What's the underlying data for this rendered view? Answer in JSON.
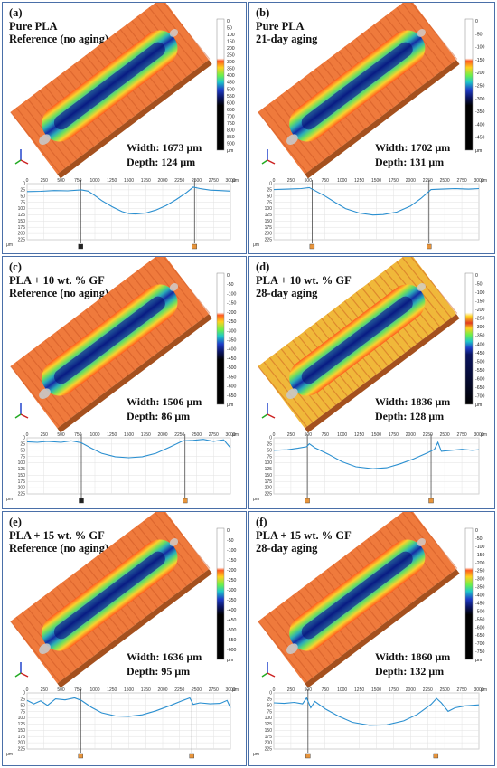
{
  "colors": {
    "panel_border": "#4a6fa8",
    "profile_line": "#2a8fd0",
    "marker_left_a": "#222222",
    "marker_orange": "#e8953c"
  },
  "panels": [
    {
      "id": "a",
      "title": "(a)",
      "line1": "Pure PLA",
      "line2": "Reference (no aging)",
      "width": "Width: 1673 μm",
      "depth": "Depth: 124 μm",
      "colorbar_ticks": [
        "0",
        "50",
        "100",
        "150",
        "200",
        "250",
        "300",
        "350",
        "400",
        "450",
        "500",
        "550",
        "600",
        "650",
        "700",
        "750",
        "800",
        "850",
        "900",
        "μm"
      ],
      "surface": "orange",
      "marker_left": "dark",
      "chart_data": {
        "type": "line",
        "x_ticks": [
          "0",
          "250",
          "500",
          "750",
          "1000",
          "1250",
          "1500",
          "1750",
          "2000",
          "2250",
          "2500",
          "2750",
          "3000"
        ],
        "x_unit": "μm",
        "y_ticks": [
          "0",
          "25",
          "50",
          "75",
          "100",
          "125",
          "150",
          "175",
          "200",
          "225"
        ],
        "y_unit": "μm",
        "xlim": [
          0,
          3000
        ],
        "ylim": [
          0,
          225
        ],
        "inverted_y": true,
        "profile": [
          [
            0,
            32
          ],
          [
            200,
            31
          ],
          [
            400,
            28
          ],
          [
            600,
            29
          ],
          [
            800,
            25
          ],
          [
            900,
            30
          ],
          [
            1000,
            48
          ],
          [
            1100,
            68
          ],
          [
            1250,
            92
          ],
          [
            1400,
            112
          ],
          [
            1500,
            120
          ],
          [
            1600,
            122
          ],
          [
            1750,
            118
          ],
          [
            1900,
            106
          ],
          [
            2050,
            88
          ],
          [
            2200,
            64
          ],
          [
            2350,
            36
          ],
          [
            2450,
            14
          ],
          [
            2550,
            20
          ],
          [
            2700,
            26
          ],
          [
            2850,
            28
          ],
          [
            3000,
            30
          ]
        ],
        "markers_x": [
          790,
          2470
        ]
      }
    },
    {
      "id": "b",
      "title": "(b)",
      "line1": "Pure PLA",
      "line2": "21-day aging",
      "width": "Width: 1702 μm",
      "depth": "Depth: 131 μm",
      "colorbar_ticks": [
        "0",
        "-50",
        "-100",
        "-150",
        "-200",
        "-250",
        "-300",
        "-350",
        "-400",
        "-450",
        "μm"
      ],
      "surface": "orange",
      "marker_left": "orange",
      "chart_data": {
        "type": "line",
        "x_ticks": [
          "0",
          "250",
          "500",
          "750",
          "1000",
          "1250",
          "1500",
          "1750",
          "2000",
          "2250",
          "2500",
          "2750",
          "3000"
        ],
        "x_unit": "μm",
        "y_ticks": [
          "0",
          "25",
          "50",
          "75",
          "100",
          "125",
          "150",
          "175",
          "200",
          "225"
        ],
        "y_unit": "μm",
        "xlim": [
          0,
          3000
        ],
        "ylim": [
          0,
          225
        ],
        "inverted_y": true,
        "profile": [
          [
            0,
            24
          ],
          [
            200,
            22
          ],
          [
            400,
            20
          ],
          [
            520,
            16
          ],
          [
            600,
            28
          ],
          [
            750,
            50
          ],
          [
            900,
            76
          ],
          [
            1050,
            100
          ],
          [
            1250,
            118
          ],
          [
            1450,
            126
          ],
          [
            1600,
            124
          ],
          [
            1800,
            114
          ],
          [
            2000,
            90
          ],
          [
            2150,
            60
          ],
          [
            2300,
            24
          ],
          [
            2450,
            22
          ],
          [
            2650,
            20
          ],
          [
            2850,
            22
          ],
          [
            3000,
            20
          ]
        ],
        "markers_x": [
          560,
          2270
        ]
      }
    },
    {
      "id": "c",
      "title": "(c)",
      "line1": "PLA + 10 wt. % GF",
      "line2": "Reference (no aging)",
      "width": "Width: 1506 μm",
      "depth": "Depth: 86 μm",
      "colorbar_ticks": [
        "0",
        "-50",
        "-100",
        "-150",
        "-200",
        "-250",
        "-300",
        "-350",
        "-400",
        "-450",
        "-500",
        "-550",
        "-600",
        "-650",
        "μm"
      ],
      "surface": "orange",
      "marker_left": "dark",
      "chart_data": {
        "type": "line",
        "x_ticks": [
          "0",
          "250",
          "500",
          "750",
          "1000",
          "1250",
          "1500",
          "1750",
          "2000",
          "2250",
          "2500",
          "2750",
          "3000"
        ],
        "x_unit": "μm",
        "y_ticks": [
          "0",
          "25",
          "50",
          "75",
          "100",
          "125",
          "150",
          "175",
          "200",
          "225"
        ],
        "y_unit": "μm",
        "xlim": [
          0,
          3000
        ],
        "ylim": [
          0,
          225
        ],
        "inverted_y": true,
        "profile": [
          [
            0,
            16
          ],
          [
            150,
            18
          ],
          [
            300,
            14
          ],
          [
            500,
            18
          ],
          [
            650,
            12
          ],
          [
            800,
            20
          ],
          [
            950,
            42
          ],
          [
            1100,
            62
          ],
          [
            1300,
            76
          ],
          [
            1500,
            80
          ],
          [
            1700,
            76
          ],
          [
            1900,
            62
          ],
          [
            2100,
            38
          ],
          [
            2300,
            12
          ],
          [
            2450,
            10
          ],
          [
            2600,
            6
          ],
          [
            2750,
            14
          ],
          [
            2900,
            8
          ],
          [
            3000,
            40
          ]
        ],
        "markers_x": [
          800,
          2330
        ]
      }
    },
    {
      "id": "d",
      "title": "(d)",
      "line1": "PLA + 10 wt. % GF",
      "line2": "28-day aging",
      "width": "Width: 1836 μm",
      "depth": "Depth: 128 μm",
      "colorbar_ticks": [
        "0",
        "-50",
        "-100",
        "-150",
        "-200",
        "-250",
        "-300",
        "-350",
        "-400",
        "-450",
        "-500",
        "-550",
        "-600",
        "-650",
        "-700",
        "μm"
      ],
      "surface": "yellow",
      "marker_left": "orange",
      "chart_data": {
        "type": "line",
        "x_ticks": [
          "0",
          "250",
          "500",
          "750",
          "1000",
          "1250",
          "1500",
          "1750",
          "2000",
          "2250",
          "2500",
          "2750",
          "3000"
        ],
        "x_unit": "μm",
        "y_ticks": [
          "0",
          "25",
          "50",
          "75",
          "100",
          "125",
          "150",
          "175",
          "200",
          "225"
        ],
        "y_unit": "μm",
        "xlim": [
          0,
          3000
        ],
        "ylim": [
          0,
          225
        ],
        "inverted_y": true,
        "profile": [
          [
            0,
            50
          ],
          [
            200,
            48
          ],
          [
            350,
            42
          ],
          [
            480,
            36
          ],
          [
            520,
            24
          ],
          [
            600,
            40
          ],
          [
            800,
            66
          ],
          [
            1000,
            96
          ],
          [
            1200,
            116
          ],
          [
            1450,
            124
          ],
          [
            1650,
            120
          ],
          [
            1850,
            104
          ],
          [
            2050,
            84
          ],
          [
            2250,
            60
          ],
          [
            2350,
            46
          ],
          [
            2400,
            18
          ],
          [
            2450,
            54
          ],
          [
            2600,
            50
          ],
          [
            2750,
            46
          ],
          [
            2900,
            50
          ],
          [
            3000,
            48
          ]
        ],
        "markers_x": [
          490,
          2300
        ]
      }
    },
    {
      "id": "e",
      "title": "(e)",
      "line1": "PLA + 15 wt. % GF",
      "line2": "Reference (no aging)",
      "width": "Width: 1636 μm",
      "depth": "Depth: 95 μm",
      "colorbar_ticks": [
        "0",
        "-50",
        "-100",
        "-150",
        "-200",
        "-250",
        "-300",
        "-350",
        "-400",
        "-450",
        "-500",
        "-550",
        "-600",
        "μm"
      ],
      "surface": "orange",
      "marker_left": "orange",
      "chart_data": {
        "type": "line",
        "x_ticks": [
          "0",
          "250",
          "500",
          "750",
          "1000",
          "1250",
          "1500",
          "1750",
          "2000",
          "2250",
          "2500",
          "2750",
          "3000"
        ],
        "x_unit": "μm",
        "y_ticks": [
          "0",
          "25",
          "50",
          "75",
          "100",
          "125",
          "150",
          "175",
          "200",
          "225"
        ],
        "y_unit": "μm",
        "xlim": [
          0,
          3000
        ],
        "ylim": [
          0,
          225
        ],
        "inverted_y": true,
        "profile": [
          [
            0,
            30
          ],
          [
            100,
            44
          ],
          [
            200,
            32
          ],
          [
            300,
            50
          ],
          [
            420,
            24
          ],
          [
            560,
            28
          ],
          [
            700,
            20
          ],
          [
            800,
            30
          ],
          [
            950,
            58
          ],
          [
            1100,
            80
          ],
          [
            1300,
            92
          ],
          [
            1500,
            94
          ],
          [
            1700,
            88
          ],
          [
            1900,
            72
          ],
          [
            2100,
            52
          ],
          [
            2300,
            30
          ],
          [
            2400,
            20
          ],
          [
            2450,
            46
          ],
          [
            2550,
            40
          ],
          [
            2700,
            44
          ],
          [
            2850,
            42
          ],
          [
            2950,
            30
          ],
          [
            3000,
            60
          ]
        ],
        "markers_x": [
          790,
          2430
        ]
      }
    },
    {
      "id": "f",
      "title": "(f)",
      "line1": "PLA + 15 wt. % GF",
      "line2": "28-day aging",
      "width": "Width: 1860 μm",
      "depth": "Depth: 132 μm",
      "colorbar_ticks": [
        "0",
        "-50",
        "-100",
        "-150",
        "-200",
        "-250",
        "-300",
        "-350",
        "-400",
        "-450",
        "-500",
        "-550",
        "-600",
        "-650",
        "-700",
        "-750",
        "μm"
      ],
      "surface": "orange",
      "marker_left": "orange",
      "chart_data": {
        "type": "line",
        "x_ticks": [
          "0",
          "250",
          "500",
          "750",
          "1000",
          "1250",
          "1500",
          "1750",
          "2000",
          "2250",
          "2500",
          "2750",
          "3000"
        ],
        "x_unit": "μm",
        "y_ticks": [
          "0",
          "25",
          "50",
          "75",
          "100",
          "125",
          "150",
          "175",
          "200",
          "225"
        ],
        "y_unit": "μm",
        "xlim": [
          0,
          3000
        ],
        "ylim": [
          0,
          225
        ],
        "inverted_y": true,
        "profile": [
          [
            0,
            40
          ],
          [
            150,
            42
          ],
          [
            300,
            38
          ],
          [
            420,
            44
          ],
          [
            480,
            20
          ],
          [
            540,
            60
          ],
          [
            600,
            34
          ],
          [
            750,
            64
          ],
          [
            950,
            94
          ],
          [
            1150,
            118
          ],
          [
            1400,
            130
          ],
          [
            1650,
            128
          ],
          [
            1900,
            112
          ],
          [
            2100,
            86
          ],
          [
            2300,
            46
          ],
          [
            2380,
            22
          ],
          [
            2450,
            40
          ],
          [
            2550,
            74
          ],
          [
            2650,
            60
          ],
          [
            2800,
            52
          ],
          [
            3000,
            48
          ]
        ],
        "markers_x": [
          500,
          2370
        ]
      }
    }
  ]
}
